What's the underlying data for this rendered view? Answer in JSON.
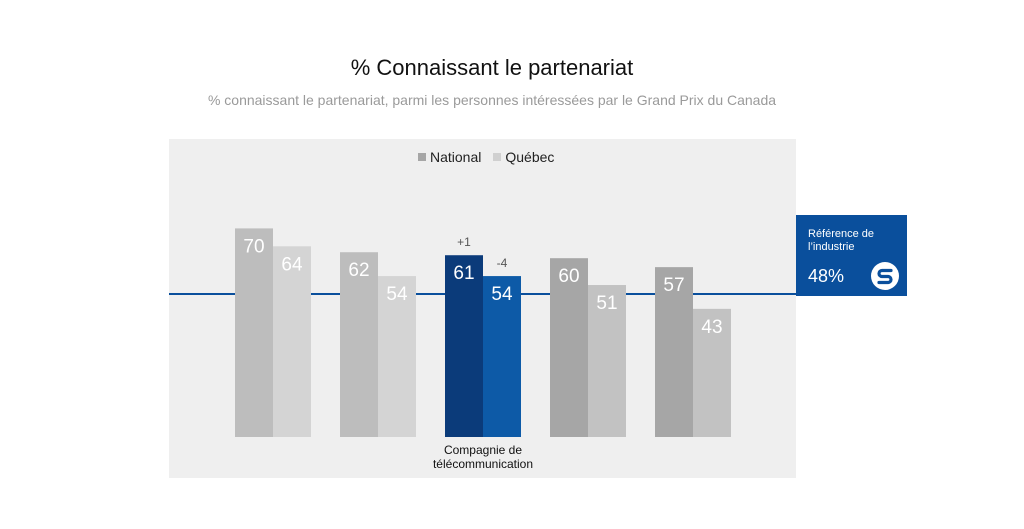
{
  "chart_data": {
    "type": "bar",
    "title": "% Connaissant le partenariat",
    "subtitle": "% connaissant le partenariat, parmi les personnes intéressées par le Grand Prix du Canada",
    "xlabel": "",
    "ylabel": "",
    "ylim": [
      0,
      100
    ],
    "grid": false,
    "legend_position": "top-center",
    "categories": [
      "",
      "",
      "Compagnie de télécommunication",
      "",
      ""
    ],
    "category_label_lines": [
      "Compagnie de",
      "télécommunication"
    ],
    "series": [
      {
        "name": "National",
        "values": [
          70,
          62,
          61,
          60,
          57
        ]
      },
      {
        "name": "Québec",
        "values": [
          64,
          54,
          54,
          51,
          43
        ]
      }
    ],
    "highlight_index": 2,
    "annotations": [
      {
        "category_index": 2,
        "series": "National",
        "text": "+1"
      },
      {
        "category_index": 2,
        "series": "Québec",
        "text": "-4"
      }
    ],
    "reference_line": {
      "value": 48,
      "label": "Référence de l’industrie",
      "value_label": "48%"
    },
    "colors": {
      "national_bars": [
        "#bdbdbd",
        "#bdbdbd",
        "#0b3b7a",
        "#a6a6a6",
        "#a6a6a6"
      ],
      "quebec_bars": [
        "#d4d4d4",
        "#d4d4d4",
        "#0d5aa7",
        "#c2c2c2",
        "#c2c2c2"
      ],
      "legend_national": "#a6a6a6",
      "legend_quebec": "#d0d0d0",
      "reference": "#0a4f9c",
      "annotation_text": "#555555",
      "bar_label": "#ffffff"
    }
  },
  "logo": {
    "icon": "s-circle-logo-icon"
  }
}
